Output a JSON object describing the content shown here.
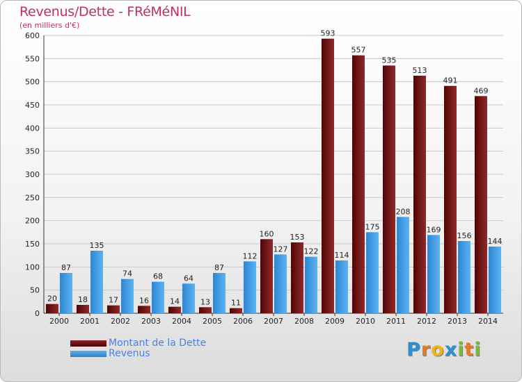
{
  "chart_data": {
    "type": "bar",
    "title": "Revenus/Dette - FRéMéNIL",
    "subtitle": "(en milliers d'€)",
    "categories": [
      "2000",
      "2001",
      "2002",
      "2003",
      "2004",
      "2005",
      "2006",
      "2007",
      "2008",
      "2009",
      "2010",
      "2011",
      "2012",
      "2013",
      "2014"
    ],
    "series": [
      {
        "name": "Montant de la Dette",
        "color": "#6b0a0a",
        "values": [
          20,
          18,
          17,
          16,
          14,
          13,
          11,
          160,
          153,
          593,
          557,
          535,
          513,
          491,
          469
        ]
      },
      {
        "name": "Revenus",
        "color": "#3d94de",
        "values": [
          87,
          135,
          74,
          68,
          64,
          87,
          112,
          127,
          122,
          114,
          175,
          208,
          169,
          156,
          144
        ]
      }
    ],
    "yticks": [
      0,
      50,
      100,
      150,
      200,
      250,
      300,
      350,
      400,
      450,
      500,
      550,
      600
    ],
    "ylim": [
      0,
      600
    ],
    "grid": true,
    "legend_position": "bottom-left"
  },
  "brand": {
    "letters": [
      {
        "ch": "P",
        "color": "#2d8fd6"
      },
      {
        "ch": "r",
        "color": "#e8792b"
      },
      {
        "ch": "o",
        "color": "#f2b21b"
      },
      {
        "ch": "x",
        "color": "#2d8fd6"
      },
      {
        "ch": "i",
        "color": "#7cbb3a"
      },
      {
        "ch": "t",
        "color": "#e8792b"
      },
      {
        "ch": "i",
        "color": "#7cbb3a"
      }
    ]
  }
}
